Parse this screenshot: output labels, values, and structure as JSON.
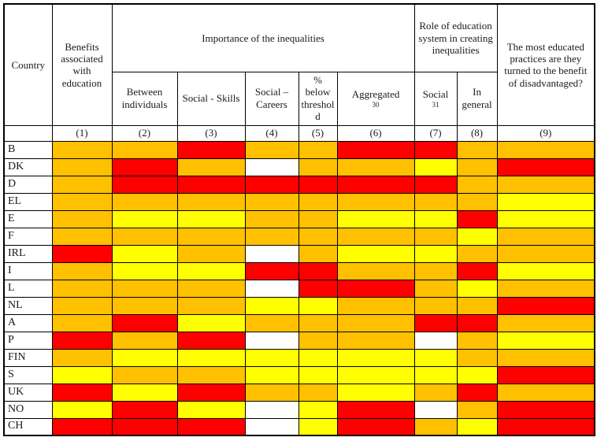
{
  "header": {
    "country": "Country",
    "benefits": "Benefits associated with education",
    "importance_group": "Importance of the inequalities",
    "role_group": "Role of education system in creating inequalities",
    "practices": "The most educated practices are they turned to the benefit of disadvantaged?",
    "subheaders": [
      {
        "label": "Between individuals",
        "note": ""
      },
      {
        "label": "Social - Skills",
        "note": ""
      },
      {
        "label": "Social – Careers",
        "note": ""
      },
      {
        "label": "% below threshold",
        "note": ""
      },
      {
        "label": "Aggregated",
        "note": "30"
      },
      {
        "label": "Social",
        "note": "31"
      },
      {
        "label": "In general",
        "note": ""
      }
    ],
    "numbers": [
      "(1)",
      "(2)",
      "(3)",
      "(4)",
      "(5)",
      "(6)",
      "(7)",
      "(8)",
      "(9)"
    ]
  },
  "colors": {
    "red": "#FF0000",
    "orange": "#FFC000",
    "yellow": "#FFFF00",
    "white": "#FFFFFF"
  },
  "rows": [
    {
      "country": "B",
      "cells": [
        "orange",
        "orange",
        "red",
        "orange",
        "orange",
        "red",
        "red",
        "orange",
        "orange"
      ]
    },
    {
      "country": "DK",
      "cells": [
        "orange",
        "red",
        "orange",
        "white",
        "orange",
        "orange",
        "yellow",
        "orange",
        "red"
      ]
    },
    {
      "country": "D",
      "cells": [
        "orange",
        "red",
        "red",
        "red",
        "red",
        "red",
        "red",
        "orange",
        "orange"
      ]
    },
    {
      "country": "EL",
      "cells": [
        "orange",
        "orange",
        "orange",
        "orange",
        "orange",
        "orange",
        "orange",
        "orange",
        "yellow"
      ]
    },
    {
      "country": "E",
      "cells": [
        "orange",
        "yellow",
        "yellow",
        "orange",
        "orange",
        "yellow",
        "yellow",
        "red",
        "yellow"
      ]
    },
    {
      "country": "F",
      "cells": [
        "orange",
        "orange",
        "orange",
        "orange",
        "orange",
        "orange",
        "orange",
        "yellow",
        "orange"
      ]
    },
    {
      "country": "IRL",
      "cells": [
        "red",
        "yellow",
        "orange",
        "white",
        "orange",
        "yellow",
        "yellow",
        "orange",
        "orange"
      ]
    },
    {
      "country": "I",
      "cells": [
        "orange",
        "yellow",
        "yellow",
        "red",
        "red",
        "orange",
        "orange",
        "red",
        "yellow"
      ]
    },
    {
      "country": "L",
      "cells": [
        "orange",
        "orange",
        "orange",
        "white",
        "red",
        "red",
        "orange",
        "yellow",
        "orange"
      ]
    },
    {
      "country": "NL",
      "cells": [
        "orange",
        "orange",
        "orange",
        "yellow",
        "yellow",
        "orange",
        "orange",
        "orange",
        "red"
      ]
    },
    {
      "country": "A",
      "cells": [
        "orange",
        "red",
        "yellow",
        "orange",
        "orange",
        "orange",
        "red",
        "red",
        "orange"
      ]
    },
    {
      "country": "P",
      "cells": [
        "red",
        "orange",
        "red",
        "white",
        "orange",
        "orange",
        "white",
        "orange",
        "yellow"
      ]
    },
    {
      "country": "FIN",
      "cells": [
        "orange",
        "yellow",
        "yellow",
        "yellow",
        "yellow",
        "yellow",
        "yellow",
        "orange",
        "orange"
      ]
    },
    {
      "country": "S",
      "cells": [
        "yellow",
        "orange",
        "orange",
        "yellow",
        "yellow",
        "yellow",
        "yellow",
        "yellow",
        "red"
      ]
    },
    {
      "country": "UK",
      "cells": [
        "red",
        "yellow",
        "red",
        "orange",
        "orange",
        "yellow",
        "orange",
        "red",
        "orange"
      ]
    },
    {
      "country": "NO",
      "cells": [
        "yellow",
        "red",
        "yellow",
        "white",
        "yellow",
        "red",
        "white",
        "orange",
        "red"
      ]
    },
    {
      "country": "CH",
      "cells": [
        "red",
        "red",
        "red",
        "white",
        "yellow",
        "red",
        "orange",
        "yellow",
        "red"
      ]
    }
  ]
}
